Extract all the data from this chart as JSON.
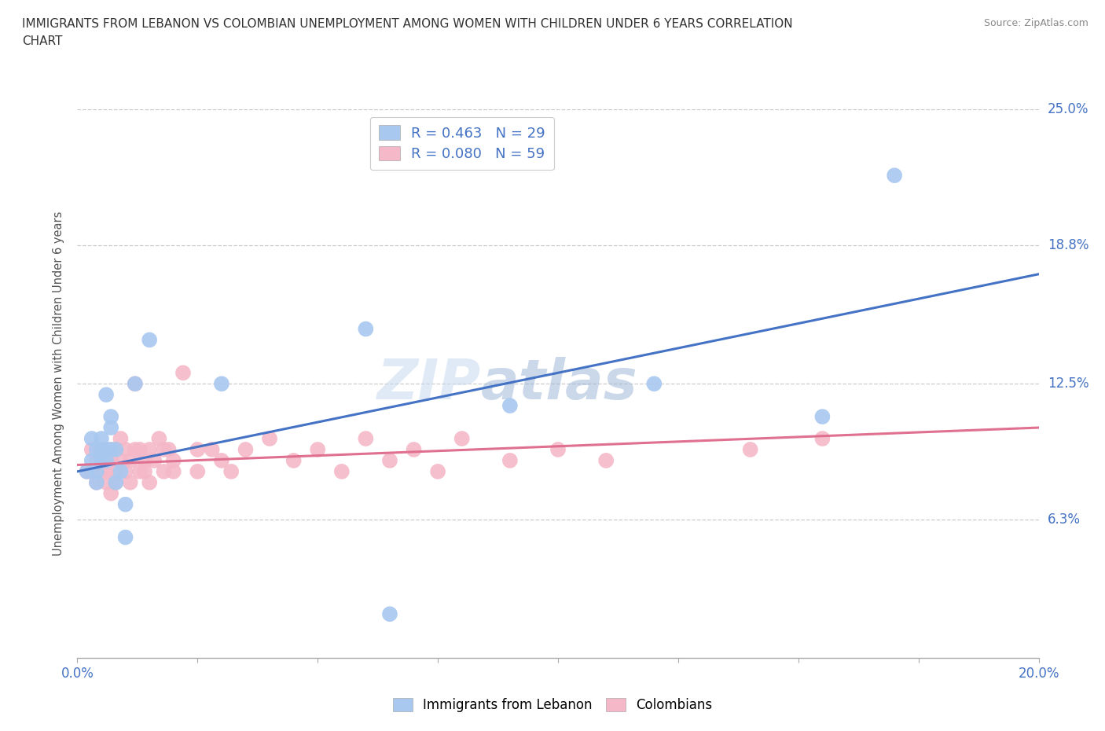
{
  "title": "IMMIGRANTS FROM LEBANON VS COLOMBIAN UNEMPLOYMENT AMONG WOMEN WITH CHILDREN UNDER 6 YEARS CORRELATION\nCHART",
  "source": "Source: ZipAtlas.com",
  "ylabel": "Unemployment Among Women with Children Under 6 years",
  "xlim": [
    0.0,
    0.2
  ],
  "ylim": [
    0.0,
    0.25
  ],
  "ytick_labels": [
    "6.3%",
    "12.5%",
    "18.8%",
    "25.0%"
  ],
  "ytick_positions": [
    0.063,
    0.125,
    0.188,
    0.25
  ],
  "legend_r1": "R = 0.463   N = 29",
  "legend_r2": "R = 0.080   N = 59",
  "blue_color": "#a8c8f0",
  "blue_line_color": "#4472c4",
  "pink_color": "#f4b8c8",
  "pink_line_color": "#e07090",
  "watermark_text": "ZIP",
  "watermark_text2": "atlas",
  "grid_color": "#cccccc",
  "background_color": "#ffffff",
  "blue_scatter_x": [
    0.002,
    0.003,
    0.003,
    0.004,
    0.004,
    0.004,
    0.005,
    0.005,
    0.005,
    0.006,
    0.006,
    0.006,
    0.007,
    0.007,
    0.007,
    0.008,
    0.008,
    0.009,
    0.01,
    0.01,
    0.012,
    0.015,
    0.03,
    0.06,
    0.065,
    0.09,
    0.12,
    0.155,
    0.17
  ],
  "blue_scatter_y": [
    0.085,
    0.09,
    0.1,
    0.085,
    0.095,
    0.08,
    0.095,
    0.1,
    0.09,
    0.12,
    0.095,
    0.09,
    0.105,
    0.11,
    0.095,
    0.08,
    0.095,
    0.085,
    0.07,
    0.055,
    0.125,
    0.145,
    0.125,
    0.15,
    0.02,
    0.115,
    0.125,
    0.11,
    0.22
  ],
  "pink_scatter_x": [
    0.002,
    0.003,
    0.003,
    0.004,
    0.004,
    0.005,
    0.005,
    0.005,
    0.006,
    0.006,
    0.006,
    0.007,
    0.007,
    0.007,
    0.008,
    0.008,
    0.008,
    0.009,
    0.009,
    0.01,
    0.01,
    0.011,
    0.011,
    0.012,
    0.012,
    0.013,
    0.013,
    0.014,
    0.014,
    0.015,
    0.015,
    0.016,
    0.017,
    0.018,
    0.018,
    0.019,
    0.02,
    0.02,
    0.022,
    0.025,
    0.025,
    0.028,
    0.03,
    0.032,
    0.035,
    0.04,
    0.045,
    0.05,
    0.055,
    0.06,
    0.065,
    0.07,
    0.075,
    0.08,
    0.09,
    0.1,
    0.11,
    0.14,
    0.155
  ],
  "pink_scatter_y": [
    0.085,
    0.095,
    0.085,
    0.09,
    0.08,
    0.095,
    0.09,
    0.085,
    0.09,
    0.085,
    0.08,
    0.095,
    0.09,
    0.075,
    0.085,
    0.095,
    0.08,
    0.1,
    0.09,
    0.095,
    0.085,
    0.09,
    0.08,
    0.095,
    0.125,
    0.085,
    0.095,
    0.09,
    0.085,
    0.095,
    0.08,
    0.09,
    0.1,
    0.095,
    0.085,
    0.095,
    0.09,
    0.085,
    0.13,
    0.095,
    0.085,
    0.095,
    0.09,
    0.085,
    0.095,
    0.1,
    0.09,
    0.095,
    0.085,
    0.1,
    0.09,
    0.095,
    0.085,
    0.1,
    0.09,
    0.095,
    0.09,
    0.095,
    0.1
  ],
  "blue_trend_x": [
    0.0,
    0.2
  ],
  "blue_trend_y": [
    0.085,
    0.175
  ],
  "pink_trend_x": [
    0.0,
    0.2
  ],
  "pink_trend_y": [
    0.088,
    0.105
  ]
}
